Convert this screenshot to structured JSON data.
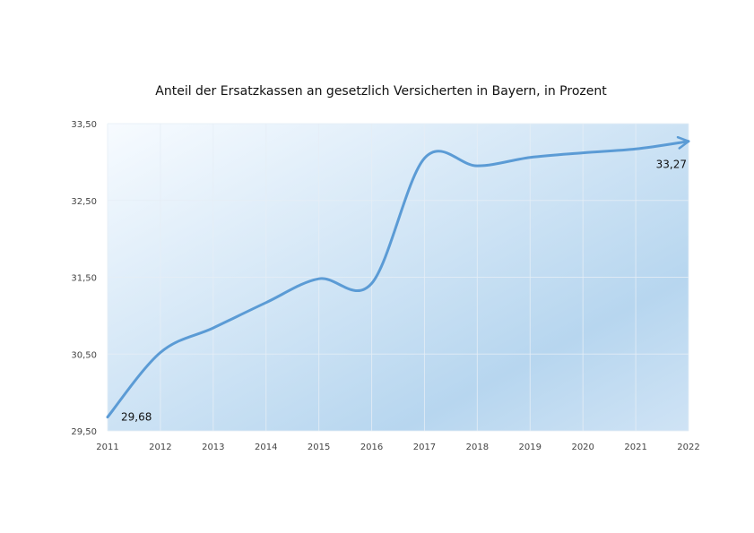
{
  "chart_data": {
    "type": "line",
    "title": "Anteil der Ersatzkassen an gesetzlich Versicherten in Bayern, in Prozent",
    "xlabel": "",
    "ylabel": "",
    "x": [
      "2011",
      "2012",
      "2013",
      "2014",
      "2015",
      "2016",
      "2017",
      "2018",
      "2019",
      "2020",
      "2021",
      "2022"
    ],
    "series": [
      {
        "values": [
          29.68,
          30.52,
          30.84,
          31.17,
          31.48,
          31.42,
          33.05,
          32.95,
          33.06,
          33.12,
          33.17,
          33.27
        ]
      }
    ],
    "ylim": [
      29.5,
      33.5
    ],
    "yticks": [
      "29,50",
      "30,50",
      "31,50",
      "32,50",
      "33,50"
    ],
    "ytick_values": [
      29.5,
      30.5,
      31.5,
      32.5,
      33.5
    ],
    "data_labels": [
      {
        "index": 0,
        "text": "29,68"
      },
      {
        "index": 11,
        "text": "33,27"
      }
    ],
    "grid": true,
    "legend": "none",
    "colors": {
      "line": "#5b9bd5",
      "plot_bg_light": "#f7fbff",
      "plot_bg_dark": "#b7d6ef",
      "grid": "#e6eef6"
    }
  }
}
